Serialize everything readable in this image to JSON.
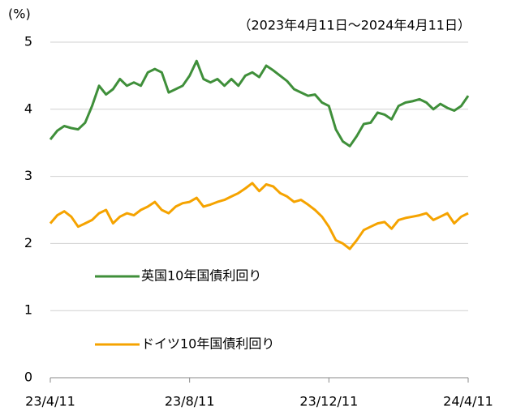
{
  "chart_data": {
    "type": "line",
    "subtitle": "（2023年4月11日～2024年4月11日）",
    "y_label": "(%)",
    "categories": [
      "23/4/11",
      null,
      null,
      null,
      null,
      null,
      null,
      null,
      null,
      null,
      null,
      null,
      null,
      null,
      null,
      null,
      null,
      null,
      null,
      null,
      "23/8/11",
      null,
      null,
      null,
      null,
      null,
      null,
      null,
      null,
      null,
      null,
      null,
      null,
      null,
      null,
      null,
      null,
      null,
      null,
      null,
      "23/12/11",
      null,
      null,
      null,
      null,
      null,
      null,
      null,
      null,
      null,
      null,
      null,
      null,
      null,
      null,
      null,
      null,
      null,
      null,
      null,
      "24/4/11"
    ],
    "series": [
      {
        "name": "英国10年国債利回り",
        "color": "#3f8f3a",
        "values": [
          3.55,
          3.68,
          3.75,
          3.72,
          3.7,
          3.8,
          4.05,
          4.35,
          4.22,
          4.3,
          4.45,
          4.35,
          4.4,
          4.35,
          4.55,
          4.6,
          4.55,
          4.25,
          4.3,
          4.35,
          4.5,
          4.72,
          4.45,
          4.4,
          4.45,
          4.35,
          4.45,
          4.35,
          4.5,
          4.55,
          4.48,
          4.65,
          4.58,
          4.5,
          4.42,
          4.3,
          4.25,
          4.2,
          4.22,
          4.1,
          4.05,
          3.7,
          3.52,
          3.45,
          3.6,
          3.78,
          3.8,
          3.95,
          3.92,
          3.85,
          4.05,
          4.1,
          4.12,
          4.15,
          4.1,
          4.0,
          4.08,
          4.02,
          3.98,
          4.05,
          4.2
        ]
      },
      {
        "name": "ドイツ10年国債利回り",
        "color": "#f5a300",
        "values": [
          2.3,
          2.42,
          2.48,
          2.4,
          2.25,
          2.3,
          2.35,
          2.45,
          2.5,
          2.3,
          2.4,
          2.45,
          2.42,
          2.5,
          2.55,
          2.62,
          2.5,
          2.45,
          2.55,
          2.6,
          2.62,
          2.68,
          2.55,
          2.58,
          2.62,
          2.65,
          2.7,
          2.75,
          2.82,
          2.9,
          2.78,
          2.88,
          2.85,
          2.75,
          2.7,
          2.62,
          2.65,
          2.58,
          2.5,
          2.4,
          2.25,
          2.05,
          2.0,
          1.92,
          2.05,
          2.2,
          2.25,
          2.3,
          2.32,
          2.22,
          2.35,
          2.38,
          2.4,
          2.42,
          2.45,
          2.35,
          2.4,
          2.45,
          2.3,
          2.4,
          2.45
        ]
      }
    ],
    "ylim": [
      0,
      5
    ],
    "yticks": [
      0,
      1,
      2,
      3,
      4,
      5
    ],
    "grid": true
  }
}
